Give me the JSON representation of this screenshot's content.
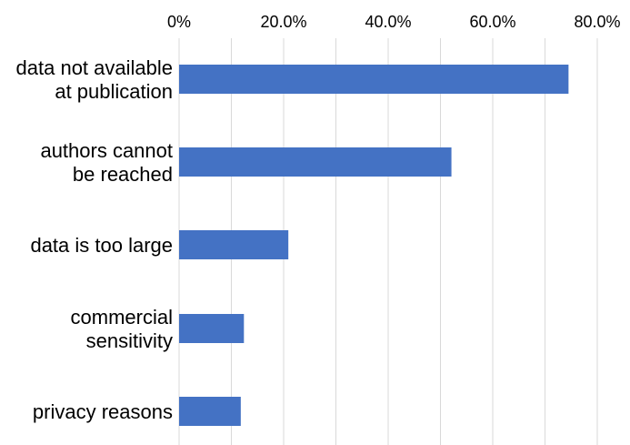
{
  "chart_data": {
    "type": "bar",
    "orientation": "horizontal",
    "x_axis_position": "top",
    "grid": true,
    "xlim": [
      0,
      80
    ],
    "x_ticks": [
      0,
      20,
      40,
      60,
      80
    ],
    "x_tick_labels": [
      "0%",
      "20.0%",
      "40.0%",
      "60.0%",
      "80.0%"
    ],
    "categories": [
      "data not available at publication",
      "authors cannot be reached",
      "data is too large",
      "commercial sensitivity",
      "privacy reasons"
    ],
    "category_label_lines": [
      [
        "data not available",
        "at publication"
      ],
      [
        "authors cannot",
        "be reached"
      ],
      [
        "data is too large"
      ],
      [
        "commercial",
        "sensitivity"
      ],
      [
        "privacy reasons"
      ]
    ],
    "values": [
      74.5,
      52.1,
      20.9,
      12.4,
      11.8
    ],
    "bar_color": "#4472C4",
    "grid_color": "#D9D9D9",
    "title": "",
    "xlabel": "",
    "ylabel": ""
  }
}
